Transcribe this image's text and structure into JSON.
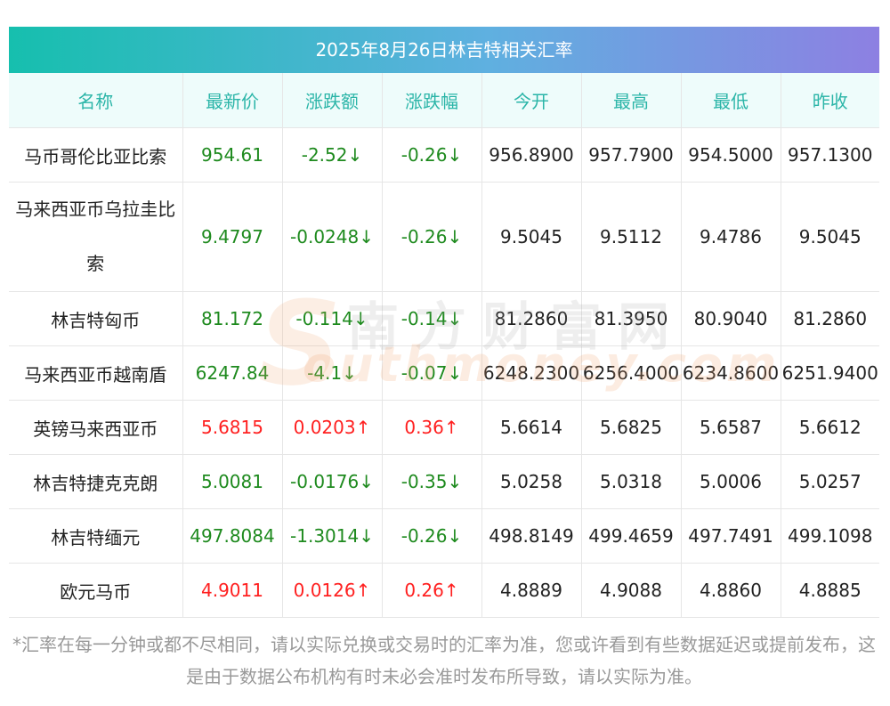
{
  "title": "2025年8月26日林吉特相关汇率",
  "headers": [
    "名称",
    "最新价",
    "涨跌额",
    "涨跌幅",
    "今开",
    "最高",
    "最低",
    "昨收"
  ],
  "rows": [
    {
      "name": "马币哥伦比亚比索",
      "latest": "954.61",
      "change": "-2.52↓",
      "pct": "-0.26↓",
      "open": "956.8900",
      "high": "957.7900",
      "low": "954.5000",
      "prev": "957.1300",
      "dir": "down"
    },
    {
      "name": "马来西亚币乌拉圭比索",
      "latest": "9.4797",
      "change": "-0.0248↓",
      "pct": "-0.26↓",
      "open": "9.5045",
      "high": "9.5112",
      "low": "9.4786",
      "prev": "9.5045",
      "dir": "down"
    },
    {
      "name": "林吉特匈币",
      "latest": "81.172",
      "change": "-0.114↓",
      "pct": "-0.14↓",
      "open": "81.2860",
      "high": "81.3950",
      "low": "80.9040",
      "prev": "81.2860",
      "dir": "down"
    },
    {
      "name": "马来西亚币越南盾",
      "latest": "6247.84",
      "change": "-4.1↓",
      "pct": "-0.07↓",
      "open": "6248.2300",
      "high": "6256.4000",
      "low": "6234.8600",
      "prev": "6251.9400",
      "dir": "down"
    },
    {
      "name": "英镑马来西亚币",
      "latest": "5.6815",
      "change": "0.0203↑",
      "pct": "0.36↑",
      "open": "5.6614",
      "high": "5.6825",
      "low": "5.6587",
      "prev": "5.6612",
      "dir": "up"
    },
    {
      "name": "林吉特捷克克朗",
      "latest": "5.0081",
      "change": "-0.0176↓",
      "pct": "-0.35↓",
      "open": "5.0258",
      "high": "5.0318",
      "low": "5.0006",
      "prev": "5.0257",
      "dir": "down"
    },
    {
      "name": "林吉特缅元",
      "latest": "497.8084",
      "change": "-1.3014↓",
      "pct": "-0.26↓",
      "open": "498.8149",
      "high": "499.4659",
      "low": "497.7491",
      "prev": "499.1098",
      "dir": "down"
    },
    {
      "name": "欧元马币",
      "latest": "4.9011",
      "change": "0.0126↑",
      "pct": "0.26↑",
      "open": "4.8889",
      "high": "4.9088",
      "low": "4.8860",
      "prev": "4.8885",
      "dir": "up"
    }
  ],
  "watermark": {
    "cn": "南方财富网",
    "en": "outhmoney.com",
    "letter": "S"
  },
  "footnote": "*汇率在每一分钟或都不尽相同，请以实际兑换或交易时的汇率为准，您或许看到有些数据延迟或提前发布，这是由于数据公布机构有时未必会准时发布所导致，请以实际为准。",
  "colors": {
    "up": "#ff2020",
    "down": "#1e8a1e",
    "header_text": "#2bb5a8",
    "gradient_start": "#16bfae",
    "gradient_end": "#8d80e2"
  }
}
